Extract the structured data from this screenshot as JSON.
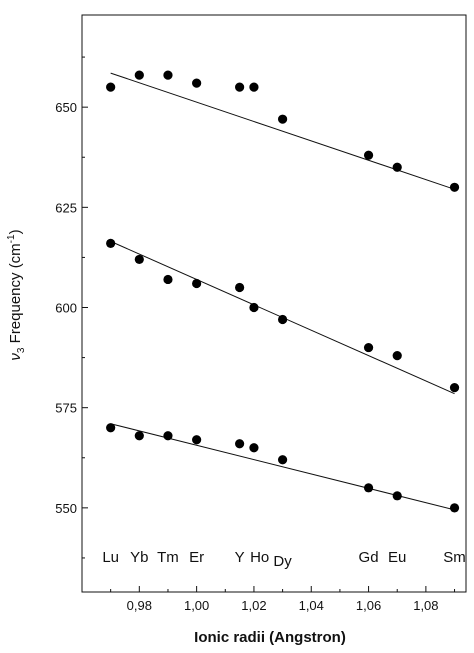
{
  "chart_data": {
    "type": "scatter",
    "xlabel": "Ionic radii (Angstron)",
    "ylabel_prefix": "ν",
    "ylabel_sub": "3",
    "ylabel_main": " Frequency (cm",
    "ylabel_sup": "-1",
    "ylabel_end": ")",
    "xlim": [
      0.96,
      1.094
    ],
    "ylim": [
      529,
      673
    ],
    "x_ticks": [
      0.98,
      1.0,
      1.02,
      1.04,
      1.06,
      1.08
    ],
    "x_tick_labels": [
      "0,98",
      "1,00",
      "1,02",
      "1,04",
      "1,06",
      "1,08"
    ],
    "y_ticks": [
      550,
      575,
      600,
      625,
      650
    ],
    "y_tick_labels": [
      "550",
      "575",
      "600",
      "625",
      "650"
    ],
    "element_labels": [
      {
        "text": "Lu",
        "x": 0.97
      },
      {
        "text": "Yb",
        "x": 0.98
      },
      {
        "text": "Tm",
        "x": 0.99
      },
      {
        "text": "Er",
        "x": 1.0
      },
      {
        "text": "Y",
        "x": 1.015
      },
      {
        "text": "Ho",
        "x": 1.022
      },
      {
        "text": "Dy",
        "x": 1.03
      },
      {
        "text": "Gd",
        "x": 1.06
      },
      {
        "text": "Eu",
        "x": 1.07
      },
      {
        "text": "Sm",
        "x": 1.09
      }
    ],
    "series": [
      {
        "x": [
          0.97,
          0.98,
          0.99,
          1.0,
          1.015,
          1.02,
          1.03,
          1.06,
          1.07,
          1.09
        ],
        "y": [
          655,
          658,
          658,
          656,
          655,
          655,
          647,
          638,
          635,
          630
        ],
        "fit": {
          "x": [
            0.97,
            1.09
          ],
          "y": [
            658.5,
            629.5
          ]
        }
      },
      {
        "x": [
          0.97,
          0.98,
          0.99,
          1.0,
          1.015,
          1.02,
          1.03,
          1.06,
          1.07,
          1.09
        ],
        "y": [
          616,
          612,
          607,
          606,
          605,
          600,
          597,
          590,
          588,
          580
        ],
        "fit": {
          "x": [
            0.97,
            1.09
          ],
          "y": [
            616.5,
            578.5
          ]
        }
      },
      {
        "x": [
          0.97,
          0.98,
          0.99,
          1.0,
          1.015,
          1.02,
          1.03,
          1.06,
          1.07,
          1.09
        ],
        "y": [
          570,
          568,
          568,
          567,
          566,
          565,
          562,
          555,
          553,
          550
        ],
        "fit": {
          "x": [
            0.97,
            1.09
          ],
          "y": [
            571,
            549.5
          ]
        }
      }
    ]
  }
}
